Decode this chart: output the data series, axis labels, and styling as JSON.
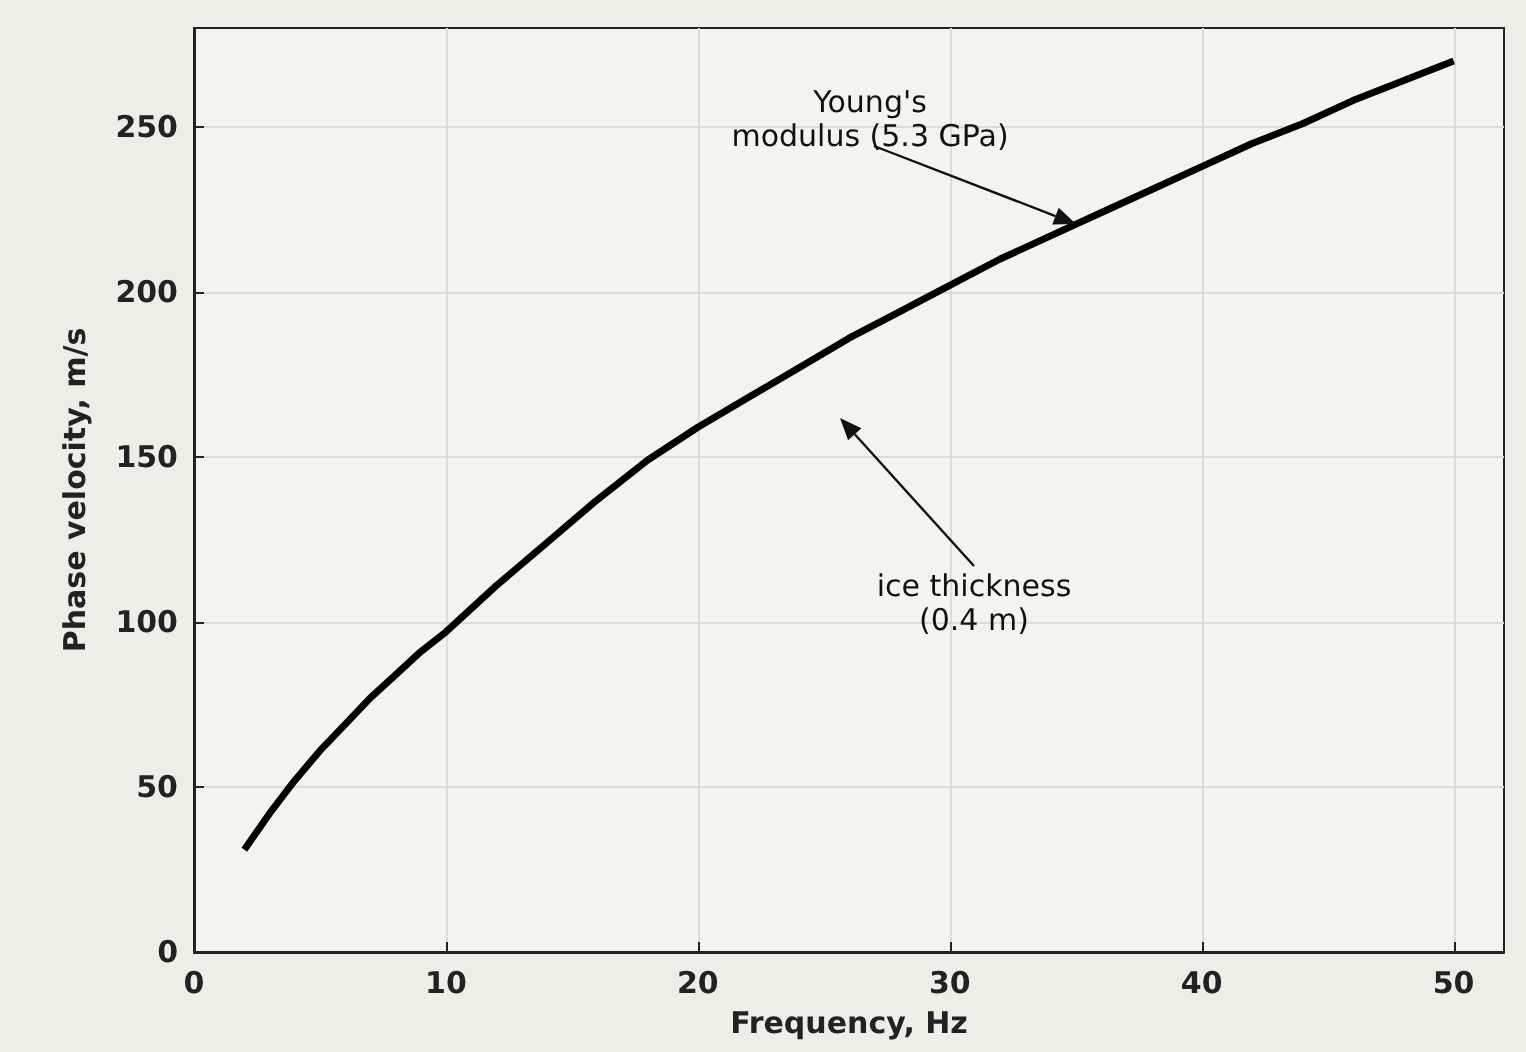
{
  "chart_data": {
    "type": "line",
    "xlabel": "Frequency, Hz",
    "ylabel": "Phase velocity, m/s",
    "x": [
      2,
      3,
      4,
      5,
      6,
      7,
      8,
      9,
      10,
      12,
      14,
      16,
      18,
      20,
      22,
      24,
      26,
      28,
      30,
      32,
      34,
      36,
      38,
      40,
      42,
      44,
      46,
      48,
      50
    ],
    "series": [
      {
        "color": "#000000",
        "values": [
          31,
          42,
          52,
          61,
          69,
          77,
          84,
          91,
          97,
          111,
          124,
          137,
          149,
          159,
          168,
          177,
          186,
          194,
          202,
          210,
          217,
          224,
          231,
          238,
          245,
          251,
          258,
          264,
          270
        ]
      }
    ],
    "xlim": [
      0,
      52
    ],
    "xticks": [
      0,
      10,
      20,
      30,
      40,
      50
    ],
    "ylim": [
      0,
      280
    ],
    "yticks": [
      0,
      50,
      100,
      150,
      200,
      250
    ],
    "grid": true,
    "marker": "none",
    "line_style": "solid",
    "annotations": [
      "Young's\nmodulus (5.3 GPa)",
      "ice thickness\n(0.4 m)"
    ]
  }
}
